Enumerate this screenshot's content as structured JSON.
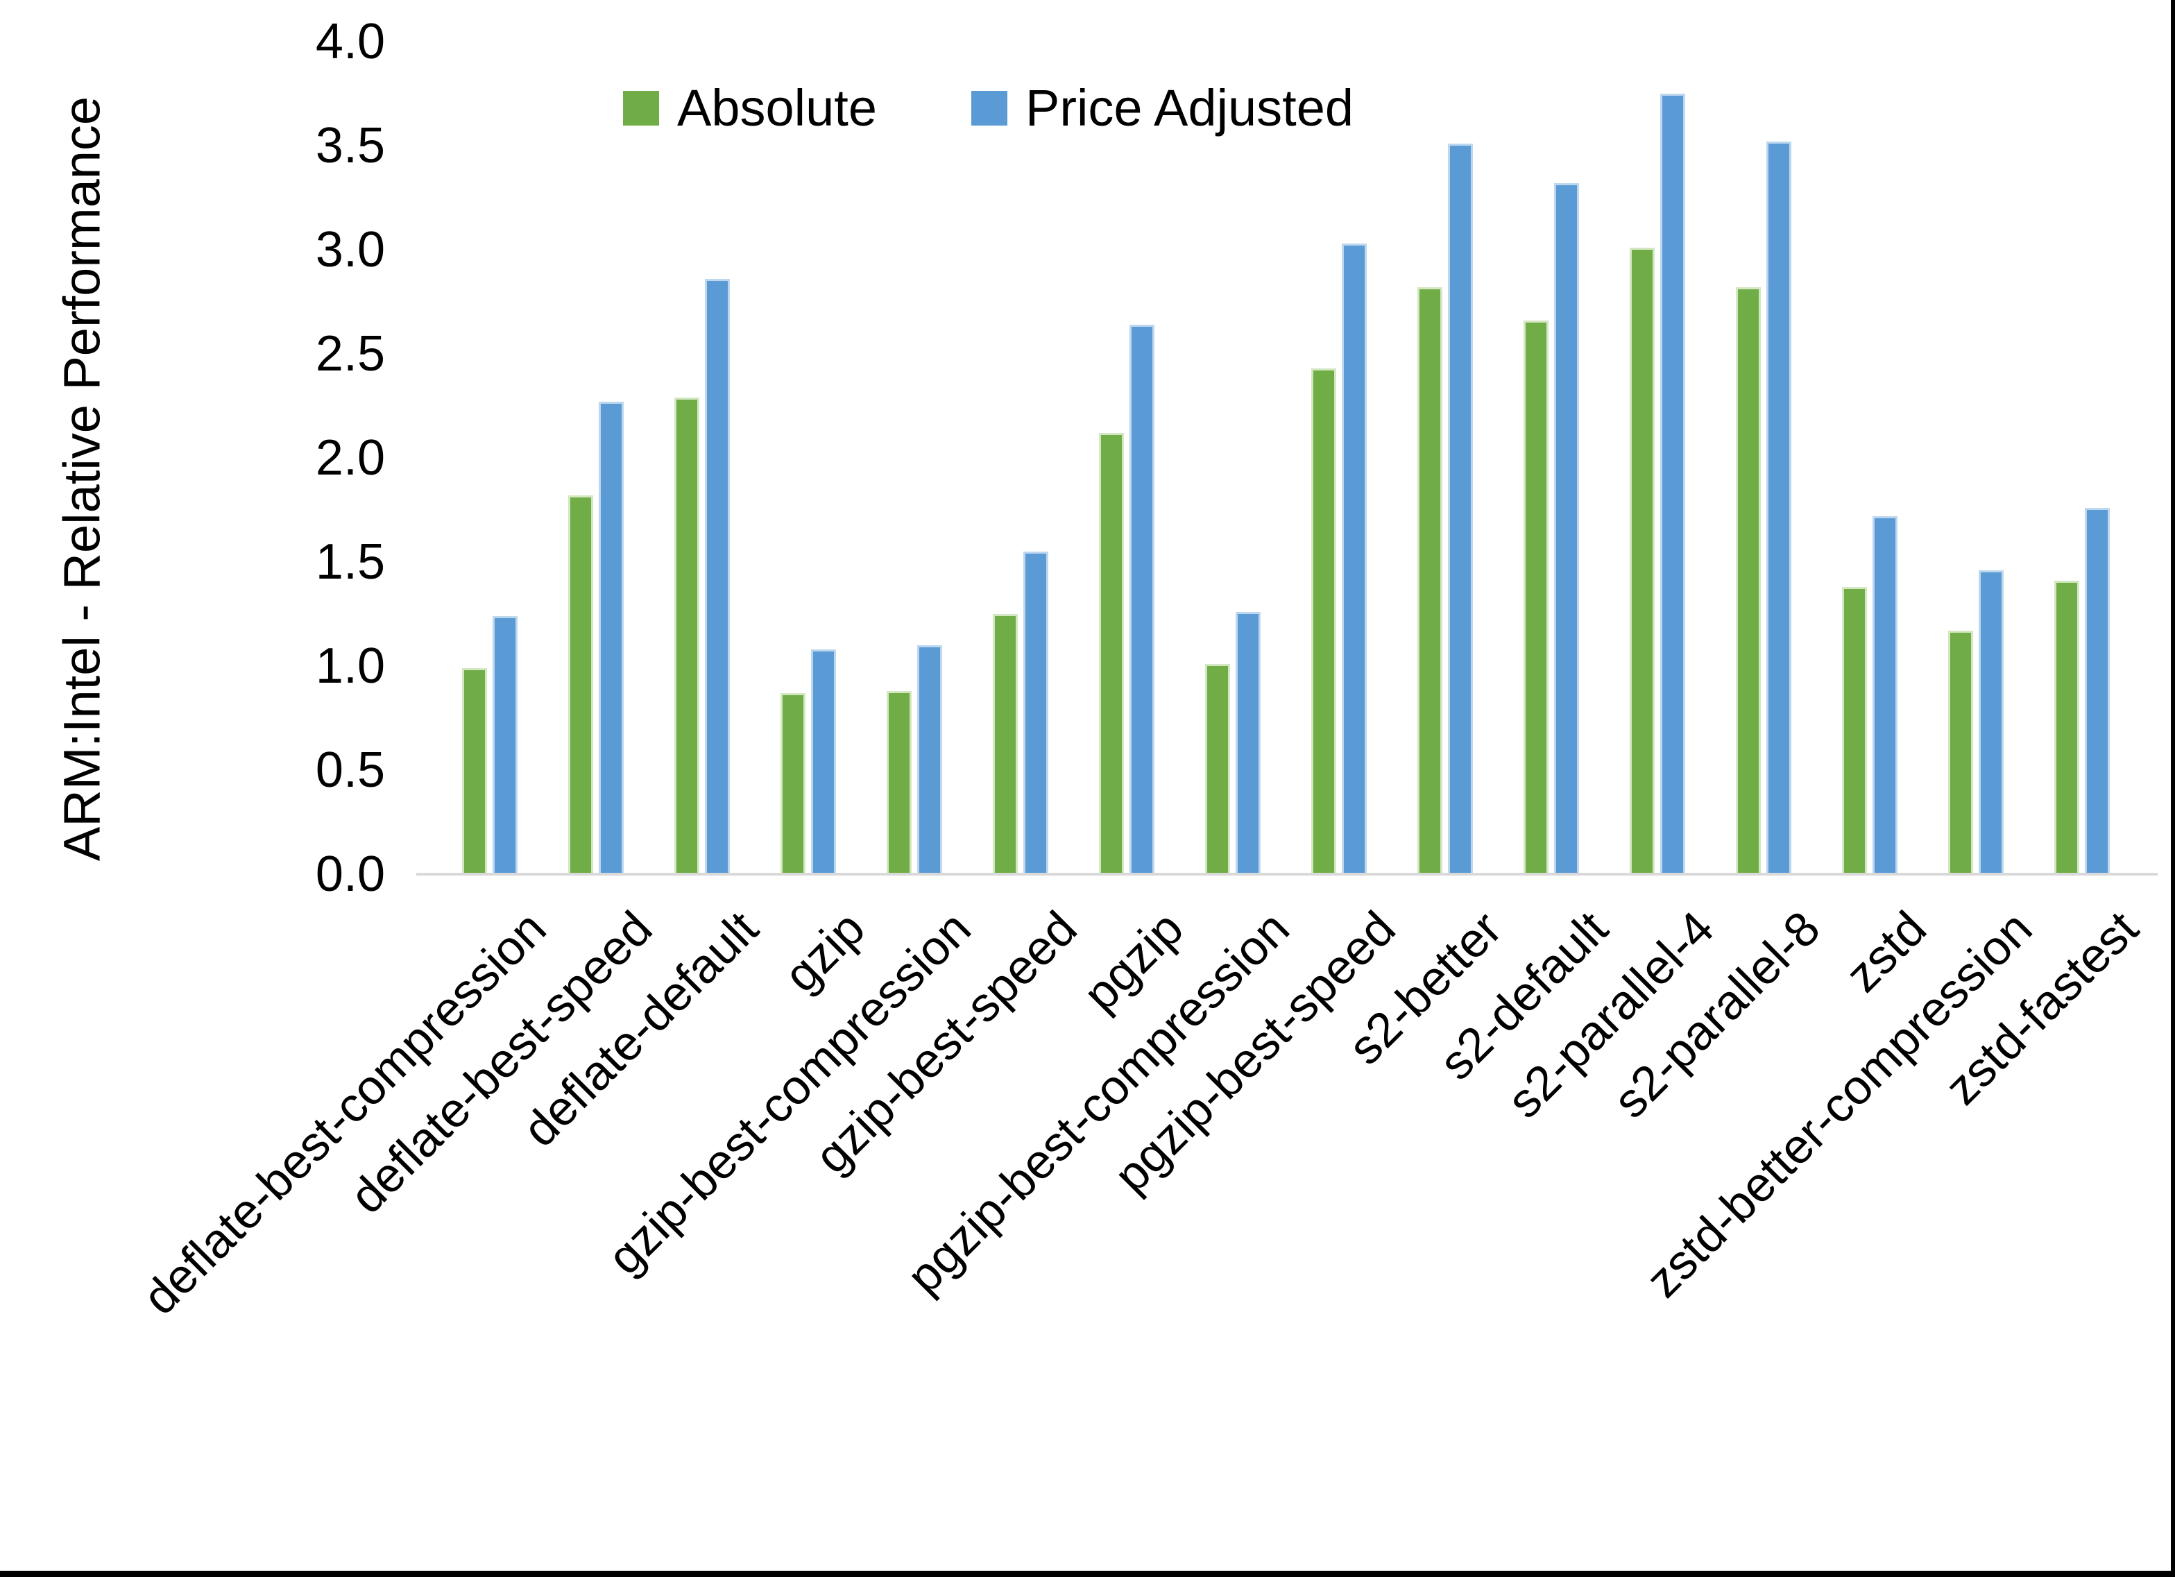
{
  "chart_data": {
    "type": "bar",
    "title": "",
    "xlabel": "",
    "ylabel": "ARM:Intel - Relative Performance",
    "ylim": [
      0.0,
      4.0
    ],
    "ytick_step": 0.5,
    "ytick_labels": [
      "0.0",
      "0.5",
      "1.0",
      "1.5",
      "2.0",
      "2.5",
      "3.0",
      "3.5",
      "4.0"
    ],
    "grid": false,
    "legend_position": "top-center",
    "axis_line_color": "#D9D9D9",
    "text_color": "#000000",
    "background_color": "#FFFFFF",
    "categories": [
      "deflate-best-compression",
      "deflate-best-speed",
      "deflate-default",
      "gzip",
      "gzip-best-compression",
      "gzip-best-speed",
      "pgzip",
      "pgzip-best-compression",
      "pgzip-best-speed",
      "s2-better",
      "s2-default",
      "s2-parallel-4",
      "s2-parallel-8",
      "zstd",
      "zstd-better-compression",
      "zstd-fastest"
    ],
    "series": [
      {
        "name": "Absolute",
        "color": "#70AD47",
        "edge_color": "#D3E7C2",
        "values": [
          0.99,
          1.82,
          2.29,
          0.87,
          0.88,
          1.25,
          2.12,
          1.01,
          2.43,
          2.82,
          2.66,
          3.01,
          2.82,
          1.38,
          1.17,
          1.41
        ]
      },
      {
        "name": "Price Adjusted",
        "color": "#5B9BD5",
        "edge_color": "#BDD7EE",
        "values": [
          1.24,
          2.27,
          2.86,
          1.08,
          1.1,
          1.55,
          2.64,
          1.26,
          3.03,
          3.51,
          3.32,
          3.75,
          3.52,
          1.72,
          1.46,
          1.76
        ]
      }
    ]
  }
}
